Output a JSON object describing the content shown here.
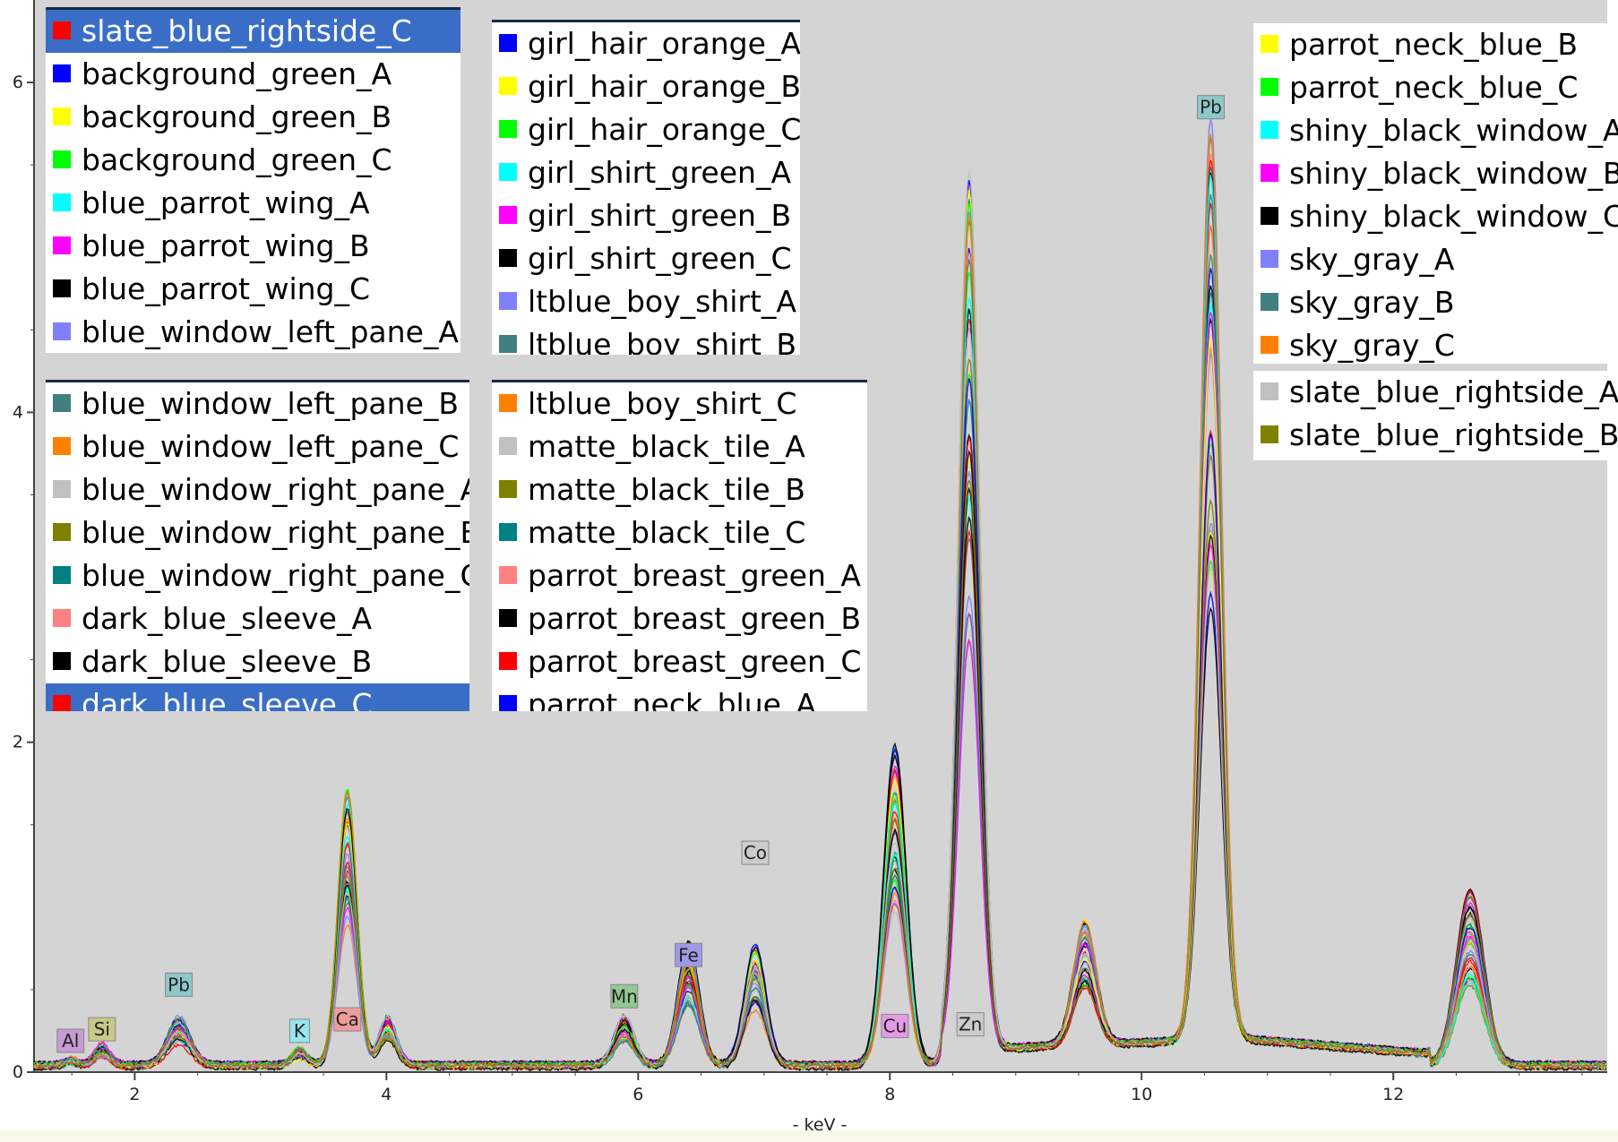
{
  "chart_data": {
    "type": "line",
    "xlabel": "- keV -",
    "ylabel": "",
    "xlim": [
      1.2,
      13.7
    ],
    "ylim": [
      0,
      6.5
    ],
    "x_ticks": [
      "2",
      "4",
      "6",
      "8",
      "10",
      "12"
    ],
    "y_ticks": [
      "0",
      "2",
      "4",
      "6"
    ],
    "grid": false,
    "element_markers": [
      {
        "label": "Al",
        "x": 1.49,
        "y": 0.19,
        "color": "#c89ad4"
      },
      {
        "label": "Si",
        "x": 1.74,
        "y": 0.26,
        "color": "#c8c888"
      },
      {
        "label": "Pb",
        "x": 2.35,
        "y": 0.53,
        "color": "#8ec8c8"
      },
      {
        "label": "K",
        "x": 3.31,
        "y": 0.25,
        "color": "#98e6ee"
      },
      {
        "label": "Ca",
        "x": 3.69,
        "y": 0.32,
        "color": "#ee9c9c"
      },
      {
        "label": "Mn",
        "x": 5.89,
        "y": 0.46,
        "color": "#92c892"
      },
      {
        "label": "Fe",
        "x": 6.4,
        "y": 0.71,
        "color": "#9e9ae6"
      },
      {
        "label": "Co",
        "x": 6.93,
        "y": 1.33,
        "color": "#cccccc"
      },
      {
        "label": "Cu",
        "x": 8.04,
        "y": 0.28,
        "color": "#e69ae6"
      },
      {
        "label": "Zn",
        "x": 8.64,
        "y": 0.29,
        "color": "#cccccc"
      },
      {
        "label": "Pb",
        "x": 10.55,
        "y": 5.85,
        "color": "#8ec8c8"
      }
    ],
    "peaks": [
      {
        "x": 1.49,
        "h": 0.03,
        "w": 0.05
      },
      {
        "x": 1.74,
        "h": 0.1,
        "w": 0.06
      },
      {
        "x": 2.35,
        "h": 0.25,
        "w": 0.09
      },
      {
        "x": 3.31,
        "h": 0.08,
        "w": 0.06
      },
      {
        "x": 3.69,
        "h": 1.45,
        "w": 0.075
      },
      {
        "x": 4.01,
        "h": 0.25,
        "w": 0.07
      },
      {
        "x": 5.89,
        "h": 0.26,
        "w": 0.08
      },
      {
        "x": 6.4,
        "h": 0.65,
        "w": 0.085
      },
      {
        "x": 6.93,
        "h": 0.6,
        "w": 0.085
      },
      {
        "x": 8.04,
        "h": 1.65,
        "w": 0.09
      },
      {
        "x": 8.63,
        "h": 4.45,
        "w": 0.085
      },
      {
        "x": 9.55,
        "h": 0.65,
        "w": 0.09
      },
      {
        "x": 10.55,
        "h": 4.7,
        "w": 0.085
      },
      {
        "x": 12.61,
        "h": 0.9,
        "w": 0.11
      }
    ],
    "series": [
      {
        "name": "slate_blue_rightside_C",
        "color": "#ff0000"
      },
      {
        "name": "background_green_A",
        "color": "#0000ff"
      },
      {
        "name": "background_green_B",
        "color": "#ffff00"
      },
      {
        "name": "background_green_C",
        "color": "#00ff00"
      },
      {
        "name": "blue_parrot_wing_A",
        "color": "#00ffff"
      },
      {
        "name": "blue_parrot_wing_B",
        "color": "#ff00ff"
      },
      {
        "name": "blue_parrot_wing_C",
        "color": "#000000"
      },
      {
        "name": "blue_window_left_pane_A",
        "color": "#8080ff"
      },
      {
        "name": "blue_window_left_pane_B",
        "color": "#408080"
      },
      {
        "name": "blue_window_left_pane_C",
        "color": "#ff8000"
      },
      {
        "name": "blue_window_right_pane_A",
        "color": "#c0c0c0"
      },
      {
        "name": "blue_window_right_pane_B",
        "color": "#808000"
      },
      {
        "name": "blue_window_right_pane_C",
        "color": "#008080"
      },
      {
        "name": "dark_blue_sleeve_A",
        "color": "#ff8080"
      },
      {
        "name": "dark_blue_sleeve_B",
        "color": "#000000"
      },
      {
        "name": "dark_blue_sleeve_C",
        "color": "#ff0000"
      },
      {
        "name": "girl_hair_orange_A",
        "color": "#0000ff"
      },
      {
        "name": "girl_hair_orange_B",
        "color": "#ffff00"
      },
      {
        "name": "girl_hair_orange_C",
        "color": "#00ff00"
      },
      {
        "name": "girl_shirt_green_A",
        "color": "#00ffff"
      },
      {
        "name": "girl_shirt_green_B",
        "color": "#ff00ff"
      },
      {
        "name": "girl_shirt_green_C",
        "color": "#000000"
      },
      {
        "name": "ltblue_boy_shirt_A",
        "color": "#8080ff"
      },
      {
        "name": "ltblue_boy_shirt_B",
        "color": "#408080"
      },
      {
        "name": "ltblue_boy_shirt_C",
        "color": "#ff8000"
      },
      {
        "name": "matte_black_tile_A",
        "color": "#c0c0c0"
      },
      {
        "name": "matte_black_tile_B",
        "color": "#808000"
      },
      {
        "name": "matte_black_tile_C",
        "color": "#008080"
      },
      {
        "name": "parrot_breast_green_A",
        "color": "#ff8080"
      },
      {
        "name": "parrot_breast_green_B",
        "color": "#000000"
      },
      {
        "name": "parrot_breast_green_C",
        "color": "#ff0000"
      },
      {
        "name": "parrot_neck_blue_A",
        "color": "#0000ff"
      },
      {
        "name": "parrot_neck_blue_B",
        "color": "#ffff00"
      },
      {
        "name": "parrot_neck_blue_C",
        "color": "#00ff00"
      },
      {
        "name": "shiny_black_window_A",
        "color": "#00ffff"
      },
      {
        "name": "shiny_black_window_B",
        "color": "#ff00ff"
      },
      {
        "name": "shiny_black_window_C",
        "color": "#000000"
      },
      {
        "name": "sky_gray_A",
        "color": "#8080ff"
      },
      {
        "name": "sky_gray_B",
        "color": "#408080"
      },
      {
        "name": "sky_gray_C",
        "color": "#ff8000"
      },
      {
        "name": "slate_blue_rightside_A",
        "color": "#c0c0c0"
      },
      {
        "name": "slate_blue_rightside_B",
        "color": "#808000"
      }
    ]
  },
  "legend": {
    "box1": [
      {
        "label": "slate_blue_rightside_C",
        "color": "#ff0000",
        "selected": true
      },
      {
        "label": "background_green_A",
        "color": "#0000ff"
      },
      {
        "label": "background_green_B",
        "color": "#ffff00"
      },
      {
        "label": "background_green_C",
        "color": "#00ff00"
      },
      {
        "label": "blue_parrot_wing_A",
        "color": "#00ffff"
      },
      {
        "label": "blue_parrot_wing_B",
        "color": "#ff00ff"
      },
      {
        "label": "blue_parrot_wing_C",
        "color": "#000000"
      },
      {
        "label": "blue_window_left_pane_A",
        "color": "#8080ff"
      }
    ],
    "box2": [
      {
        "label": "girl_hair_orange_A",
        "color": "#0000ff"
      },
      {
        "label": "girl_hair_orange_B",
        "color": "#ffff00"
      },
      {
        "label": "girl_hair_orange_C",
        "color": "#00ff00"
      },
      {
        "label": "girl_shirt_green_A",
        "color": "#00ffff"
      },
      {
        "label": "girl_shirt_green_B",
        "color": "#ff00ff"
      },
      {
        "label": "girl_shirt_green_C",
        "color": "#000000"
      },
      {
        "label": "ltblue_boy_shirt_A",
        "color": "#8080ff"
      },
      {
        "label": "ltblue_boy_shirt_B",
        "color": "#408080"
      }
    ],
    "box3": [
      {
        "label": "parrot_neck_blue_B",
        "color": "#ffff00"
      },
      {
        "label": "parrot_neck_blue_C",
        "color": "#00ff00"
      },
      {
        "label": "shiny_black_window_A",
        "color": "#00ffff"
      },
      {
        "label": "shiny_black_window_B",
        "color": "#ff00ff"
      },
      {
        "label": "shiny_black_window_C",
        "color": "#000000"
      },
      {
        "label": "sky_gray_A",
        "color": "#8080ff"
      },
      {
        "label": "sky_gray_B",
        "color": "#408080"
      },
      {
        "label": "sky_gray_C",
        "color": "#ff8000"
      }
    ],
    "box4": [
      {
        "label": "blue_window_left_pane_B",
        "color": "#408080"
      },
      {
        "label": "blue_window_left_pane_C",
        "color": "#ff8000"
      },
      {
        "label": "blue_window_right_pane_A",
        "color": "#c0c0c0"
      },
      {
        "label": "blue_window_right_pane_B",
        "color": "#808000"
      },
      {
        "label": "blue_window_right_pane_C",
        "color": "#008080"
      },
      {
        "label": "dark_blue_sleeve_A",
        "color": "#ff8080"
      },
      {
        "label": "dark_blue_sleeve_B",
        "color": "#000000"
      },
      {
        "label": "dark_blue_sleeve_C",
        "color": "#ff0000",
        "selected": true
      }
    ],
    "box5": [
      {
        "label": "ltblue_boy_shirt_C",
        "color": "#ff8000"
      },
      {
        "label": "matte_black_tile_A",
        "color": "#c0c0c0"
      },
      {
        "label": "matte_black_tile_B",
        "color": "#808000"
      },
      {
        "label": "matte_black_tile_C",
        "color": "#008080"
      },
      {
        "label": "parrot_breast_green_A",
        "color": "#ff8080"
      },
      {
        "label": "parrot_breast_green_B",
        "color": "#000000"
      },
      {
        "label": "parrot_breast_green_C",
        "color": "#ff0000"
      },
      {
        "label": "parrot_neck_blue_A",
        "color": "#0000ff"
      }
    ],
    "box6": [
      {
        "label": "slate_blue_rightside_A",
        "color": "#c0c0c0"
      },
      {
        "label": "slate_blue_rightside_B",
        "color": "#808000"
      }
    ]
  },
  "colors": {
    "plot_bg": "#d4d4d4",
    "frame_bg": "#ffffff",
    "status_bar": "#f8f8e8",
    "selection": "#3a6ec6"
  }
}
